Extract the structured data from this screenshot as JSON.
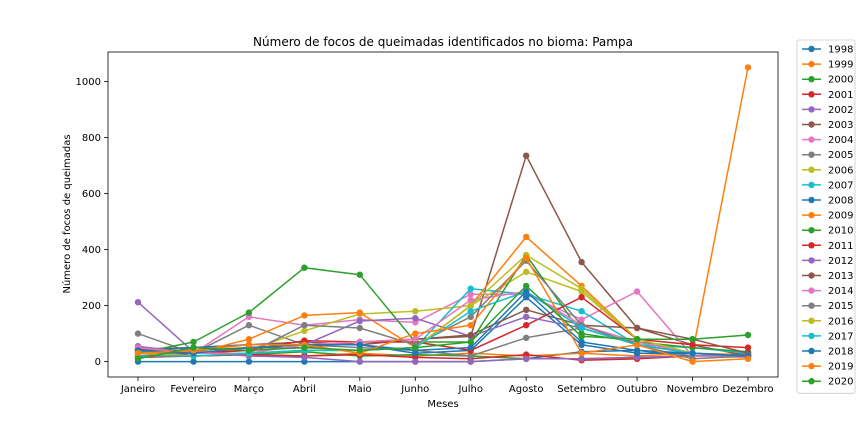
{
  "chart_data": {
    "type": "line",
    "title": "Número de focos de queimadas identificados no bioma: Pampa",
    "xlabel": "Meses",
    "ylabel": "Número de focos de queimadas",
    "categories": [
      "Janeiro",
      "Fevereiro",
      "Março",
      "Abril",
      "Maio",
      "Junho",
      "Julho",
      "Agosto",
      "Setembro",
      "Outubro",
      "Novembro",
      "Dezembro"
    ],
    "ylim": [
      -55,
      1105
    ],
    "yticks": [
      0,
      200,
      400,
      600,
      800,
      1000
    ],
    "grid": false,
    "legend_position": "right outside",
    "marker": "circle",
    "series": [
      {
        "name": "1998",
        "color": "#1f77b4",
        "values": [
          0,
          0,
          0,
          0,
          0,
          0,
          0,
          10,
          35,
          40,
          20,
          30
        ]
      },
      {
        "name": "1999",
        "color": "#ff7f0e",
        "values": [
          20,
          20,
          25,
          20,
          30,
          20,
          30,
          20,
          30,
          20,
          30,
          25
        ]
      },
      {
        "name": "2000",
        "color": "#2ca02c",
        "values": [
          30,
          20,
          25,
          35,
          20,
          25,
          20,
          10,
          10,
          15,
          20,
          25
        ]
      },
      {
        "name": "2001",
        "color": "#d62728",
        "values": [
          15,
          20,
          25,
          20,
          25,
          15,
          10,
          25,
          5,
          10,
          20,
          20
        ]
      },
      {
        "name": "2002",
        "color": "#9467bd",
        "values": [
          212,
          35,
          20,
          15,
          0,
          0,
          0,
          10,
          10,
          15,
          20,
          25
        ]
      },
      {
        "name": "2003",
        "color": "#8c564b",
        "values": [
          45,
          50,
          60,
          70,
          60,
          80,
          90,
          735,
          355,
          120,
          60,
          20
        ]
      },
      {
        "name": "2004",
        "color": "#e377c2",
        "values": [
          40,
          30,
          160,
          130,
          150,
          140,
          240,
          240,
          150,
          250,
          20,
          15
        ]
      },
      {
        "name": "2005",
        "color": "#7f7f7f",
        "values": [
          100,
          30,
          130,
          60,
          50,
          40,
          20,
          85,
          120,
          60,
          10,
          20
        ]
      },
      {
        "name": "2006",
        "color": "#bcbd22",
        "values": [
          20,
          30,
          40,
          110,
          170,
          180,
          200,
          320,
          250,
          80,
          30,
          20
        ]
      },
      {
        "name": "2007",
        "color": "#17becf",
        "values": [
          30,
          20,
          30,
          40,
          40,
          50,
          260,
          240,
          180,
          60,
          50,
          30
        ]
      },
      {
        "name": "2008",
        "color": "#1f77b4",
        "values": [
          40,
          50,
          60,
          60,
          60,
          30,
          40,
          230,
          60,
          30,
          30,
          20
        ]
      },
      {
        "name": "2009",
        "color": "#ff7f0e",
        "values": [
          30,
          30,
          80,
          165,
          175,
          50,
          200,
          445,
          270,
          80,
          30,
          1050
        ]
      },
      {
        "name": "2010",
        "color": "#2ca02c",
        "values": [
          30,
          70,
          175,
          335,
          310,
          70,
          70,
          380,
          100,
          70,
          50,
          35
        ]
      },
      {
        "name": "2011",
        "color": "#d62728",
        "values": [
          20,
          30,
          40,
          75,
          70,
          70,
          40,
          130,
          230,
          80,
          60,
          50
        ]
      },
      {
        "name": "2012",
        "color": "#9467bd",
        "values": [
          55,
          30,
          50,
          60,
          145,
          155,
          90,
          160,
          120,
          60,
          30,
          20
        ]
      },
      {
        "name": "2013",
        "color": "#8c564b",
        "values": [
          40,
          40,
          50,
          50,
          70,
          80,
          95,
          185,
          130,
          120,
          80,
          30
        ]
      },
      {
        "name": "2014",
        "color": "#e377c2",
        "values": [
          50,
          30,
          30,
          60,
          70,
          80,
          220,
          250,
          130,
          70,
          30,
          20
        ]
      },
      {
        "name": "2015",
        "color": "#7f7f7f",
        "values": [
          40,
          20,
          30,
          130,
          120,
          60,
          160,
          360,
          130,
          60,
          30,
          20
        ]
      },
      {
        "name": "2016",
        "color": "#bcbd22",
        "values": [
          30,
          20,
          30,
          40,
          40,
          50,
          200,
          380,
          260,
          80,
          30,
          20
        ]
      },
      {
        "name": "2017",
        "color": "#17becf",
        "values": [
          20,
          20,
          30,
          40,
          40,
          50,
          180,
          250,
          120,
          60,
          30,
          20
        ]
      },
      {
        "name": "2018",
        "color": "#1f77b4",
        "values": [
          40,
          30,
          50,
          60,
          60,
          40,
          50,
          250,
          70,
          40,
          30,
          20
        ]
      },
      {
        "name": "2019",
        "color": "#ff7f0e",
        "values": [
          30,
          40,
          60,
          60,
          30,
          100,
          130,
          370,
          30,
          60,
          0,
          10
        ]
      },
      {
        "name": "2020",
        "color": "#2ca02c",
        "values": [
          10,
          50,
          40,
          50,
          40,
          50,
          70,
          270,
          90,
          80,
          80,
          95
        ]
      }
    ]
  }
}
